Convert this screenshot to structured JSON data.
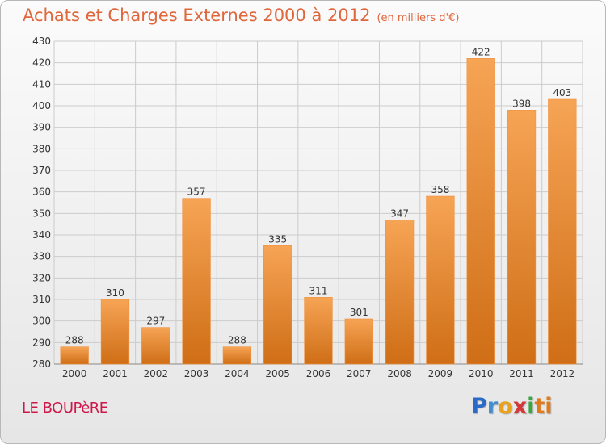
{
  "chart_data": {
    "type": "bar",
    "title": "Achats et Charges Externes 2000 à 2012",
    "subtitle": "(en milliers d'€)",
    "categories": [
      "2000",
      "2001",
      "2002",
      "2003",
      "2004",
      "2005",
      "2006",
      "2007",
      "2008",
      "2009",
      "2010",
      "2011",
      "2012"
    ],
    "values": [
      288,
      310,
      297,
      357,
      288,
      335,
      311,
      301,
      347,
      358,
      422,
      398,
      403
    ],
    "ylim": [
      280,
      430
    ],
    "yticks": [
      280,
      290,
      300,
      310,
      320,
      330,
      340,
      350,
      360,
      370,
      380,
      390,
      400,
      410,
      420,
      430
    ],
    "grid": true,
    "bar_color": "#f0913e"
  },
  "footer": {
    "commune": "LE BOUPèRE",
    "brand_letters": [
      "P",
      "r",
      "o",
      "x",
      "i",
      "ti"
    ]
  }
}
